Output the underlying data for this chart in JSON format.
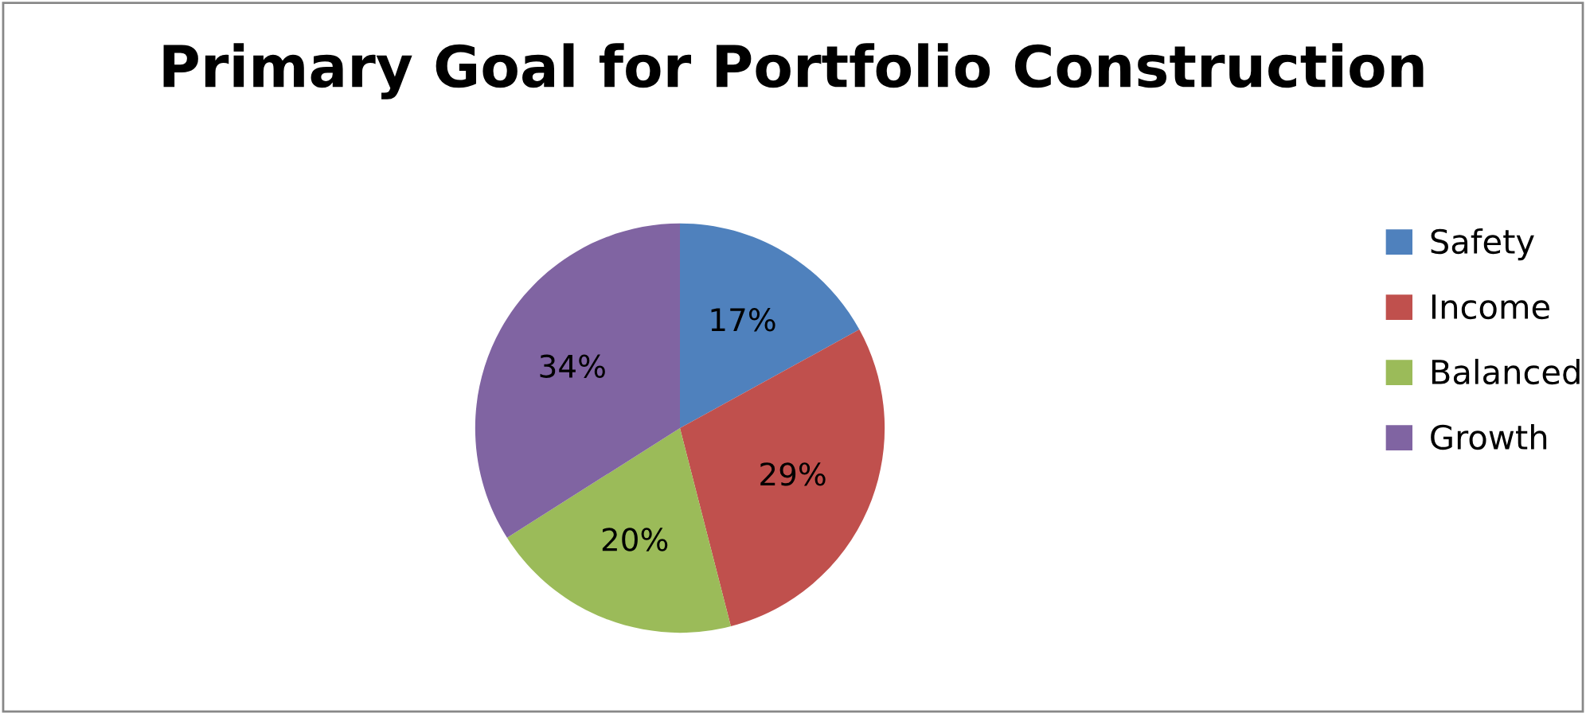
{
  "chart_data": {
    "type": "pie",
    "title": "Primary Goal for Portfolio Construction",
    "categories": [
      "Safety",
      "Income",
      "Balanced",
      "Growth"
    ],
    "values": [
      17,
      29,
      20,
      34
    ],
    "colors": [
      "#4f81bd",
      "#c0504d",
      "#9bbb59",
      "#8064a2"
    ],
    "value_labels": [
      "17%",
      "29%",
      "20%",
      "34%"
    ],
    "legend": "right"
  }
}
